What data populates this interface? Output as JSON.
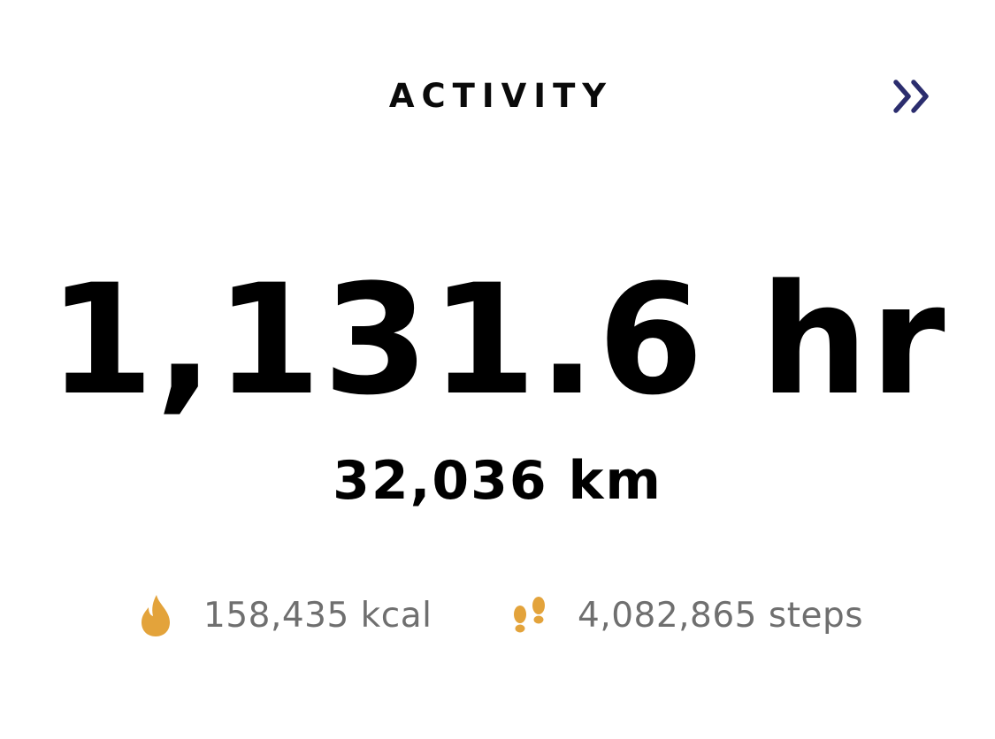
{
  "header": {
    "title": "ACTIVITY",
    "more_icon": "double-chevron-right-icon",
    "accent_color": "#2b2d6e"
  },
  "main": {
    "duration": "1,131.6 hr",
    "distance": "32,036 km"
  },
  "stats": {
    "calories": {
      "icon": "flame-icon",
      "label": "158,435 kcal"
    },
    "steps": {
      "icon": "footprints-icon",
      "label": "4,082,865 steps"
    },
    "icon_color": "#e3a33b"
  }
}
